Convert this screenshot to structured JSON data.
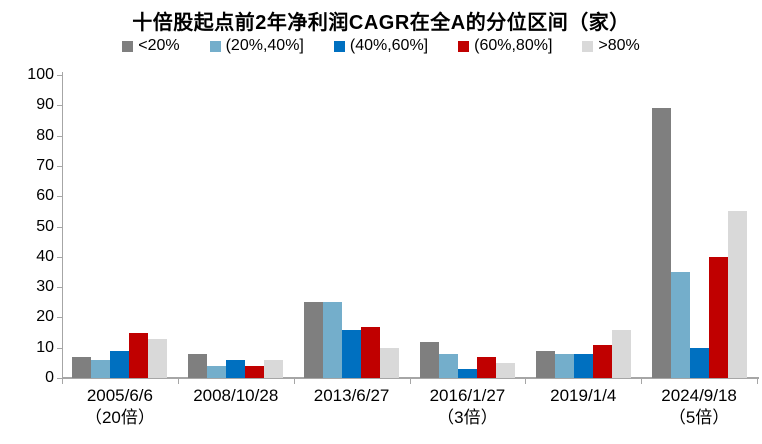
{
  "title": "十倍股起点前2年净利润CAGR在全A的分位区间（家）",
  "legend": [
    {
      "label": "<20%",
      "color": "#7f7f7f"
    },
    {
      "label": "(20%,40%]",
      "color": "#74aecb"
    },
    {
      "label": "(40%,60%]",
      "color": "#0070c0"
    },
    {
      "label": "(60%,80%]",
      "color": "#c00000"
    },
    {
      "label": ">80%",
      "color": "#d9d9d9"
    }
  ],
  "axis": {
    "ymin": 0,
    "ymax": 100,
    "ytick_step": 10,
    "axis_color": "#a6a6a6"
  },
  "chart_data": {
    "type": "bar",
    "title": "十倍股起点前2年净利润CAGR在全A的分位区间（家）",
    "categories": [
      {
        "label": "2005/6/6",
        "sublabel": "（20倍）"
      },
      {
        "label": "2008/10/28",
        "sublabel": ""
      },
      {
        "label": "2013/6/27",
        "sublabel": ""
      },
      {
        "label": "2016/1/27",
        "sublabel": "（3倍）"
      },
      {
        "label": "2019/1/4",
        "sublabel": ""
      },
      {
        "label": "2024/9/18",
        "sublabel": "（5倍）"
      }
    ],
    "series": [
      {
        "name": "<20%",
        "color": "#7f7f7f",
        "values": [
          7,
          8,
          25,
          12,
          9,
          89
        ]
      },
      {
        "name": "(20%,40%]",
        "color": "#74aecb",
        "values": [
          6,
          4,
          25,
          8,
          8,
          35
        ]
      },
      {
        "name": "(40%,60%]",
        "color": "#0070c0",
        "values": [
          9,
          6,
          16,
          3,
          8,
          10
        ]
      },
      {
        "name": "(60%,80%]",
        "color": "#c00000",
        "values": [
          15,
          4,
          17,
          7,
          11,
          40
        ]
      },
      {
        "name": ">80%",
        "color": "#d9d9d9",
        "values": [
          13,
          6,
          10,
          5,
          16,
          55
        ]
      }
    ],
    "xlabel": "",
    "ylabel": "",
    "ylim": [
      0,
      100
    ],
    "yticks": [
      0,
      10,
      20,
      30,
      40,
      50,
      60,
      70,
      80,
      90,
      100
    ],
    "grid": false,
    "legend_position": "top",
    "bar_unit": "家 (count of companies)"
  }
}
